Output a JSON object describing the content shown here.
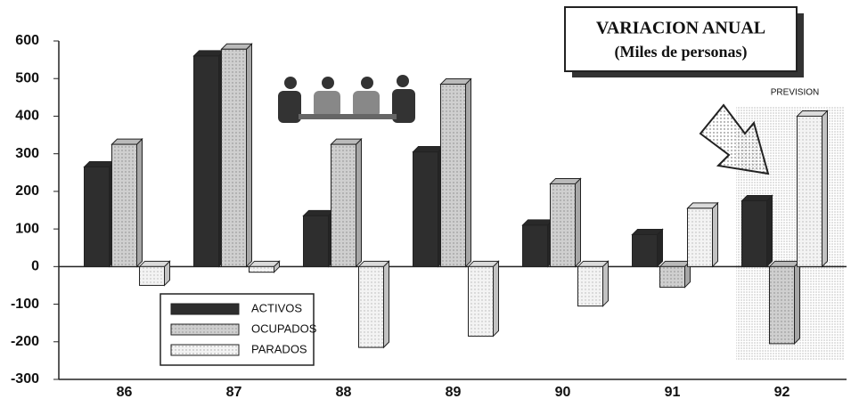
{
  "chart_data": {
    "type": "bar",
    "title": "VARIACION ANUAL",
    "subtitle": "(Miles de personas)",
    "annotation": "PREVISION",
    "categories": [
      "86",
      "87",
      "88",
      "89",
      "90",
      "91",
      "92"
    ],
    "series": [
      {
        "name": "ACTIVOS",
        "color": "#2e2e2e",
        "values": [
          265,
          560,
          135,
          305,
          110,
          85,
          175
        ]
      },
      {
        "name": "OCUPADOS",
        "color": "#cfcfcf",
        "values": [
          325,
          578,
          325,
          485,
          220,
          -55,
          -205
        ]
      },
      {
        "name": "PARADOS",
        "color": "#f3f3f3",
        "values": [
          -50,
          -15,
          -215,
          -185,
          -105,
          155,
          400
        ]
      }
    ],
    "ylim": [
      -300,
      600
    ],
    "yticks": [
      -300,
      -200,
      -100,
      0,
      100,
      200,
      300,
      400,
      500,
      600
    ],
    "grid": false,
    "legend": "bottom-left"
  }
}
